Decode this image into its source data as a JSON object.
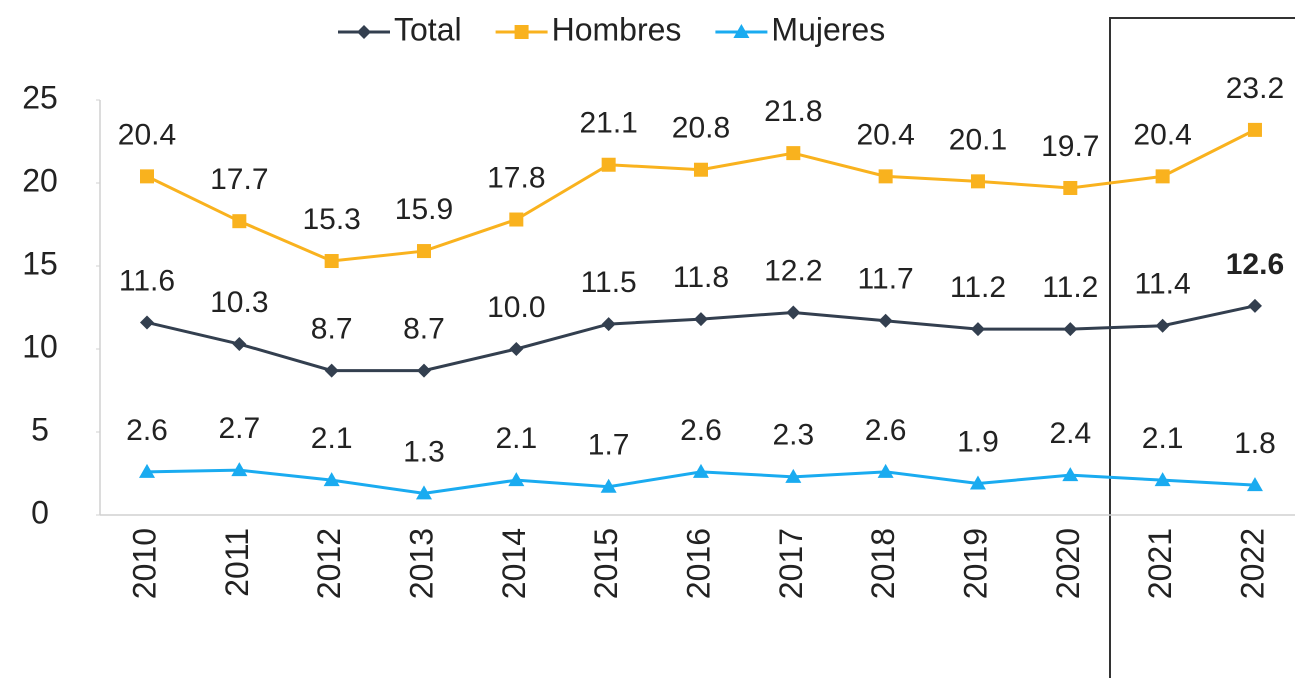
{
  "chart_data": {
    "type": "line",
    "categories": [
      "2010",
      "2011",
      "2012",
      "2013",
      "2014",
      "2015",
      "2016",
      "2017",
      "2018",
      "2019",
      "2020",
      "2021",
      "2022"
    ],
    "ylim": [
      0,
      25
    ],
    "yticks": [
      0,
      5,
      10,
      15,
      20,
      25
    ],
    "series": [
      {
        "name": "Total",
        "color": "#333f4f",
        "marker": "diamond",
        "values": [
          11.6,
          10.3,
          8.7,
          8.7,
          10.0,
          11.5,
          11.8,
          12.2,
          11.7,
          11.2,
          11.2,
          11.4,
          12.6
        ],
        "value_labels": [
          "11.6",
          "10.3",
          "8.7",
          "8.7",
          "10.0",
          "11.5",
          "11.8",
          "12.2",
          "11.7",
          "11.2",
          "11.2",
          "11.4",
          "12.6"
        ]
      },
      {
        "name": "Hombres",
        "color": "#f9b21e",
        "marker": "square",
        "values": [
          20.4,
          17.7,
          15.3,
          15.9,
          17.8,
          21.1,
          20.8,
          21.8,
          20.4,
          20.1,
          19.7,
          20.4,
          23.2
        ],
        "value_labels": [
          "20.4",
          "17.7",
          "15.3",
          "15.9",
          "17.8",
          "21.1",
          "20.8",
          "21.8",
          "20.4",
          "20.1",
          "19.7",
          "20.4",
          "23.2"
        ]
      },
      {
        "name": "Mujeres",
        "color": "#1aabf0",
        "marker": "triangle",
        "values": [
          2.6,
          2.7,
          2.1,
          1.3,
          2.1,
          1.7,
          2.6,
          2.3,
          2.6,
          1.9,
          2.4,
          2.1,
          1.8
        ],
        "value_labels": [
          "2.6",
          "2.7",
          "2.1",
          "1.3",
          "2.1",
          "1.7",
          "2.6",
          "2.3",
          "2.6",
          "1.9",
          "2.4",
          "2.1",
          "1.8"
        ]
      }
    ]
  }
}
